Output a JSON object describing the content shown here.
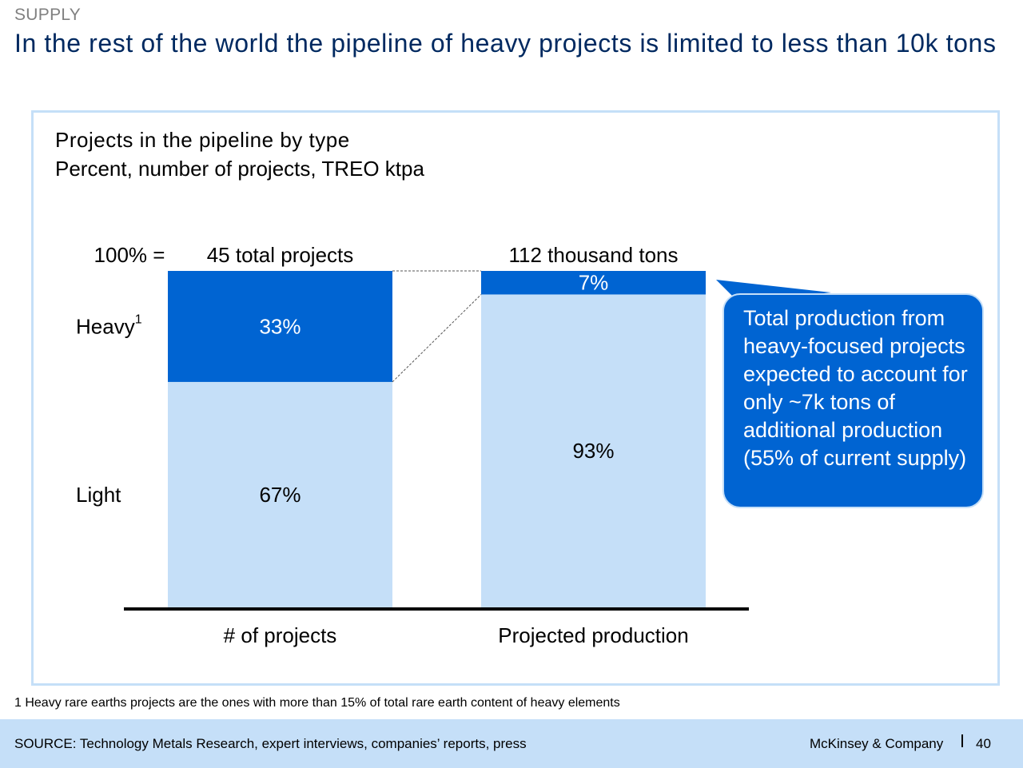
{
  "header": {
    "section": "SUPPLY",
    "title": "In the rest of the world the pipeline of heavy projects is limited to less than 10k tons"
  },
  "chart_data": {
    "type": "bar",
    "stacked": true,
    "normalized": true,
    "title": "Projects in the pipeline by type",
    "subtitle": "Percent, number of projects, TREO ktpa",
    "total_prefix": "100% =",
    "categories": [
      "# of projects",
      "Projected production"
    ],
    "totals": [
      "45 total projects",
      "112 thousand tons"
    ],
    "series": [
      {
        "name": "Light",
        "values": [
          67,
          93
        ],
        "labels": [
          "67%",
          "93%"
        ],
        "color": "#c5dff8",
        "label_color": "#000000"
      },
      {
        "name": "Heavy",
        "superscript": "1",
        "values": [
          33,
          7
        ],
        "labels": [
          "33%",
          "7%"
        ],
        "color": "#0064d2",
        "label_color": "#ffffff"
      }
    ],
    "ylim": [
      0,
      100
    ]
  },
  "callout": {
    "text": "Total production from heavy-focused projects expected to account for only ~7k tons of additional production (55% of current supply)",
    "color": "#0064d2"
  },
  "footnote": "1 Heavy rare earths projects are the ones with more than 15% of total rare earth content of heavy elements",
  "footer": {
    "source": "SOURCE: Technology Metals Research, expert interviews, companies’ reports, press",
    "brand": "McKinsey & Company",
    "page": "40"
  }
}
